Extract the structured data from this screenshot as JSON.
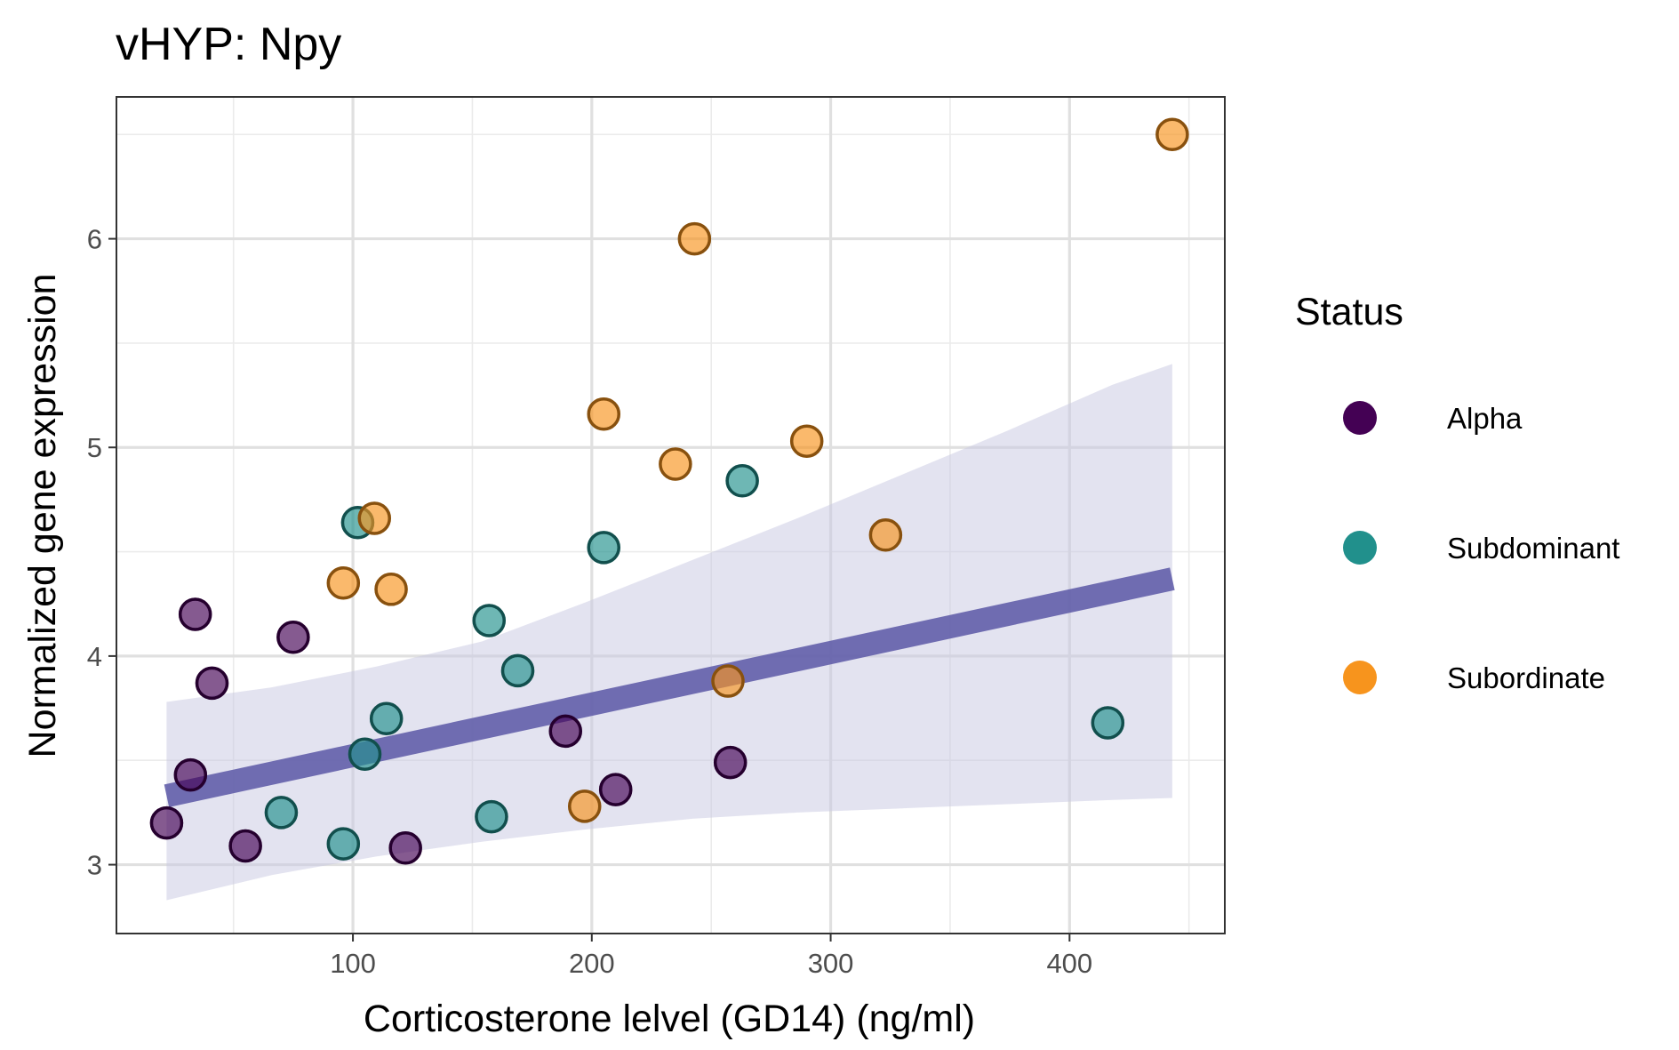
{
  "chart_data": {
    "type": "scatter",
    "title": "vHYP: Npy",
    "xlabel": "Corticosterone lelvel (GD14) (ng/ml)",
    "ylabel": "Normalized gene expression",
    "xlim": [
      1,
      465
    ],
    "ylim": [
      2.67,
      6.68
    ],
    "xticks": [
      100,
      200,
      300,
      400
    ],
    "yticks": [
      3,
      4,
      5,
      6
    ],
    "grid": true,
    "legend": {
      "title": "Status",
      "position": "right"
    },
    "series": [
      {
        "name": "Alpha",
        "color": "#440154",
        "points": [
          {
            "x": 22,
            "y": 3.2
          },
          {
            "x": 32,
            "y": 3.43
          },
          {
            "x": 34,
            "y": 4.2
          },
          {
            "x": 41,
            "y": 3.87
          },
          {
            "x": 55,
            "y": 3.09
          },
          {
            "x": 75,
            "y": 4.09
          },
          {
            "x": 122,
            "y": 3.08
          },
          {
            "x": 189,
            "y": 3.64
          },
          {
            "x": 210,
            "y": 3.36
          },
          {
            "x": 258,
            "y": 3.49
          }
        ]
      },
      {
        "name": "Subdominant",
        "color": "#21908C",
        "points": [
          {
            "x": 70,
            "y": 3.25
          },
          {
            "x": 96,
            "y": 3.1
          },
          {
            "x": 102,
            "y": 4.64
          },
          {
            "x": 105,
            "y": 3.53
          },
          {
            "x": 114,
            "y": 3.7
          },
          {
            "x": 157,
            "y": 4.17
          },
          {
            "x": 158,
            "y": 3.23
          },
          {
            "x": 169,
            "y": 3.93
          },
          {
            "x": 205,
            "y": 4.52
          },
          {
            "x": 263,
            "y": 4.84
          },
          {
            "x": 416,
            "y": 3.68
          }
        ]
      },
      {
        "name": "Subordinate",
        "color": "#F7941D",
        "points": [
          {
            "x": 96,
            "y": 4.35
          },
          {
            "x": 109,
            "y": 4.66
          },
          {
            "x": 116,
            "y": 4.32
          },
          {
            "x": 197,
            "y": 3.28
          },
          {
            "x": 205,
            "y": 5.16
          },
          {
            "x": 235,
            "y": 4.92
          },
          {
            "x": 243,
            "y": 6.0
          },
          {
            "x": 257,
            "y": 3.88
          },
          {
            "x": 290,
            "y": 5.03
          },
          {
            "x": 323,
            "y": 4.58
          },
          {
            "x": 443,
            "y": 6.5
          }
        ]
      }
    ],
    "fit": {
      "type": "linear",
      "color": "#5B57A6",
      "band_color": "#C8C8E2",
      "x": [
        22,
        443
      ],
      "y": [
        3.33,
        4.37
      ],
      "band": {
        "x": [
          22,
          66,
          110,
          154,
          198,
          242,
          286,
          330,
          374,
          418,
          443
        ],
        "upper": [
          3.78,
          3.85,
          3.95,
          4.07,
          4.26,
          4.46,
          4.66,
          4.87,
          5.08,
          5.3,
          5.4
        ],
        "lower": [
          2.83,
          2.95,
          3.04,
          3.11,
          3.17,
          3.22,
          3.25,
          3.27,
          3.29,
          3.31,
          3.32
        ]
      }
    }
  }
}
